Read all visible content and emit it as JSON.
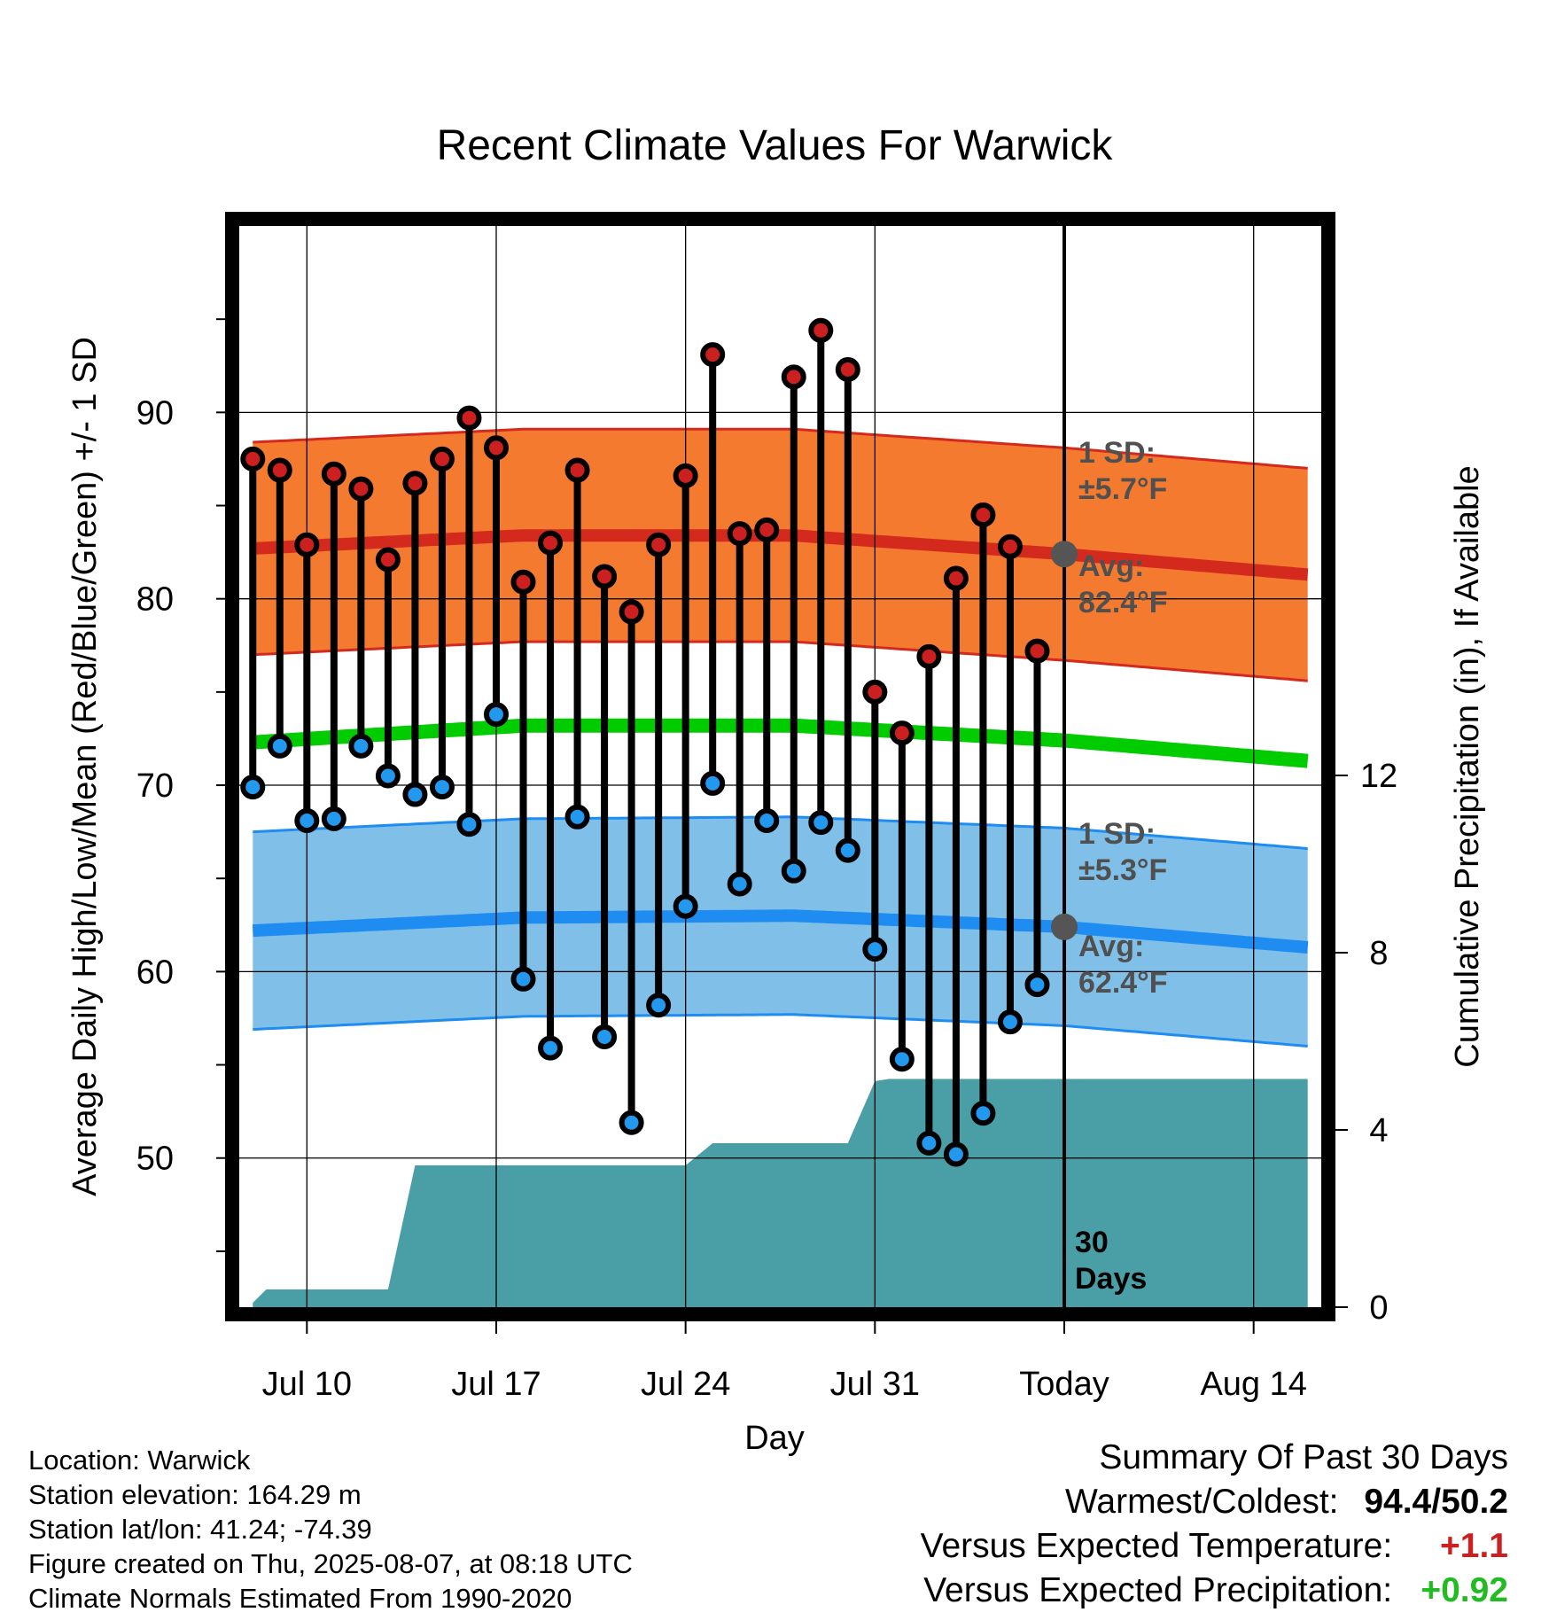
{
  "title": "Recent Climate Values For Warwick",
  "xlabel": "Day",
  "ylabel_left": "Average Daily High/Low/Mean (Red/Blue/Green) +/- 1 SD",
  "ylabel_right": "Cumulative Precipitation (in), If Available",
  "x_ticks": [
    "Jul 10",
    "Jul 17",
    "Jul 24",
    "Jul 31",
    "Today",
    "Aug 14"
  ],
  "y_ticks_left": [
    "50",
    "60",
    "70",
    "80",
    "90"
  ],
  "y_ticks_right": [
    "0",
    "4",
    "8",
    "12"
  ],
  "annotations": {
    "high_sd_label": "1 SD:",
    "high_sd_value": "±5.7°F",
    "high_avg_label": "Avg:",
    "high_avg_value": "82.4°F",
    "low_sd_label": "1 SD:",
    "low_sd_value": "±5.3°F",
    "low_avg_label": "Avg:",
    "low_avg_value": "62.4°F",
    "days_number": "30",
    "days_word": "Days"
  },
  "footer": {
    "location": "Location: Warwick",
    "elevation": "Station elevation: 164.29 m",
    "latlon": "Station lat/lon: 41.24; -74.39",
    "created": "Figure created on Thu, 2025-08-07, at 08:18 UTC",
    "normals": "Climate Normals Estimated From 1990-2020"
  },
  "summary": {
    "heading": "Summary Of Past 30 Days",
    "warm_cold_label": "Warmest/Coldest:",
    "warm_cold_value": "94.4/50.2",
    "temp_label": "Versus Expected Temperature:",
    "temp_value": "+1.1",
    "precip_label": "Versus Expected Precipitation:",
    "precip_value": "+0.92"
  },
  "colors": {
    "high_band": "#f47a30",
    "high_avg": "#d42a1e",
    "low_band": "#80c0e8",
    "low_avg": "#1e8cf0",
    "mean": "#00cc00",
    "precip": "#4a9ea6",
    "high_dot": "#cc1f1f",
    "low_dot": "#2299ee",
    "today_dot": "#555555",
    "annotation_text": "#505050",
    "temp_positive": "#cc1f1f",
    "precip_positive": "#22bb22"
  },
  "chart_data": {
    "type": "line",
    "title": "Recent Climate Values For Warwick",
    "xlabel": "Day",
    "ylabel": "Average Daily High/Low/Mean (Red/Blue/Green) +/- 1 SD",
    "y2label": "Cumulative Precipitation (in), If Available",
    "x_range_day_offset_from_today": [
      -30.5,
      9.5
    ],
    "x_tick_day_offsets": [
      -28,
      -21,
      -14,
      -7,
      0,
      7
    ],
    "ylim": [
      42,
      100
    ],
    "y2lim": [
      0,
      24.4
    ],
    "grid": true,
    "daily_highs": [
      87.5,
      86.9,
      82.9,
      86.7,
      85.9,
      82.1,
      86.2,
      87.5,
      89.7,
      88.1,
      80.9,
      83.0,
      86.9,
      81.2,
      79.3,
      82.9,
      86.6,
      93.1,
      83.5,
      83.7,
      91.9,
      94.4,
      92.3,
      75.0,
      72.8,
      76.9,
      81.1,
      84.5,
      82.8,
      77.2
    ],
    "daily_lows": [
      69.9,
      72.1,
      68.1,
      68.2,
      72.1,
      70.5,
      69.5,
      69.9,
      67.9,
      73.8,
      59.6,
      55.9,
      68.3,
      56.5,
      51.9,
      58.2,
      63.5,
      70.1,
      64.7,
      68.1,
      65.4,
      68.0,
      66.5,
      61.2,
      55.3,
      50.8,
      50.2,
      52.4,
      57.3,
      59.3
    ],
    "normal_high_x": [
      -30,
      -20,
      -10,
      0,
      9
    ],
    "normal_high": [
      82.7,
      83.4,
      83.4,
      82.4,
      81.3
    ],
    "normal_high_sd": 5.7,
    "normal_low_x": [
      -30,
      -20,
      -10,
      0,
      9
    ],
    "normal_low": [
      62.2,
      62.9,
      63.0,
      62.4,
      61.3
    ],
    "normal_low_sd": 5.3,
    "normal_mean_x": [
      -30,
      -20,
      -10,
      0,
      9
    ],
    "normal_mean": [
      72.3,
      73.2,
      73.2,
      72.4,
      71.3
    ],
    "precip_x": [
      -30,
      -29.5,
      -25,
      -24,
      -19,
      -14,
      -13,
      -10,
      -8,
      -7,
      -6.5,
      0,
      9
    ],
    "precip_cumulative": [
      0.1,
      0.4,
      0.4,
      3.2,
      3.2,
      3.2,
      3.7,
      3.7,
      3.7,
      5.1,
      5.15,
      5.15,
      5.15
    ],
    "today_normal_high": 82.4,
    "today_normal_low": 62.4
  }
}
